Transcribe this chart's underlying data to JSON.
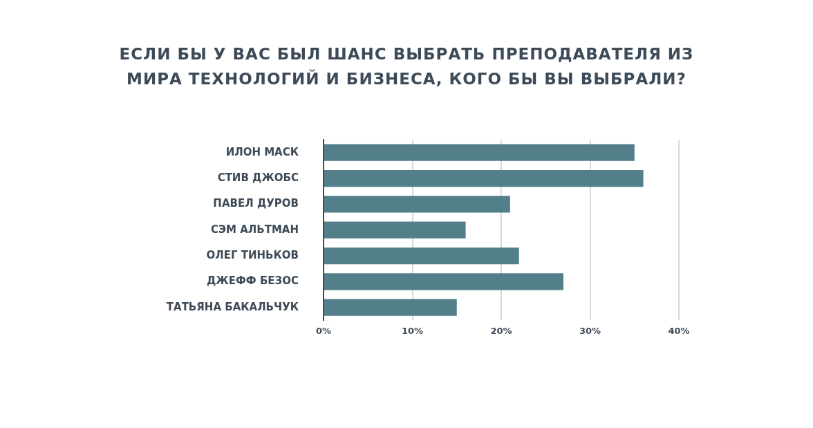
{
  "chart_data": {
    "type": "bar",
    "orientation": "horizontal",
    "title": "ЕСЛИ БЫ У ВАС БЫЛ ШАНС ВЫБРАТЬ ПРЕПОДАВАТЕЛЯ ИЗ МИРА ТЕХНОЛОГИЙ И БИЗНЕСА, КОГО БЫ ВЫ ВЫБРАЛИ?",
    "categories": [
      "ИЛОН МАСК",
      "СТИВ ДЖОБС",
      "ПАВЕЛ ДУРОВ",
      "СЭМ АЛЬТМАН",
      "ОЛЕГ ТИНЬКОВ",
      "ДЖЕФФ БЕЗОС",
      "ТАТЬЯНА БАКАЛЬЧУК"
    ],
    "values": [
      35,
      36,
      21,
      16,
      22,
      27,
      15
    ],
    "color": "#527f8a",
    "xlim": [
      0,
      40
    ],
    "xticks": [
      {
        "value": 0,
        "label": "0%"
      },
      {
        "value": 10,
        "label": "10%"
      },
      {
        "value": 20,
        "label": "20%"
      },
      {
        "value": 30,
        "label": "30%"
      },
      {
        "value": 40,
        "label": "40%"
      }
    ],
    "grid": "x",
    "legend": false
  }
}
